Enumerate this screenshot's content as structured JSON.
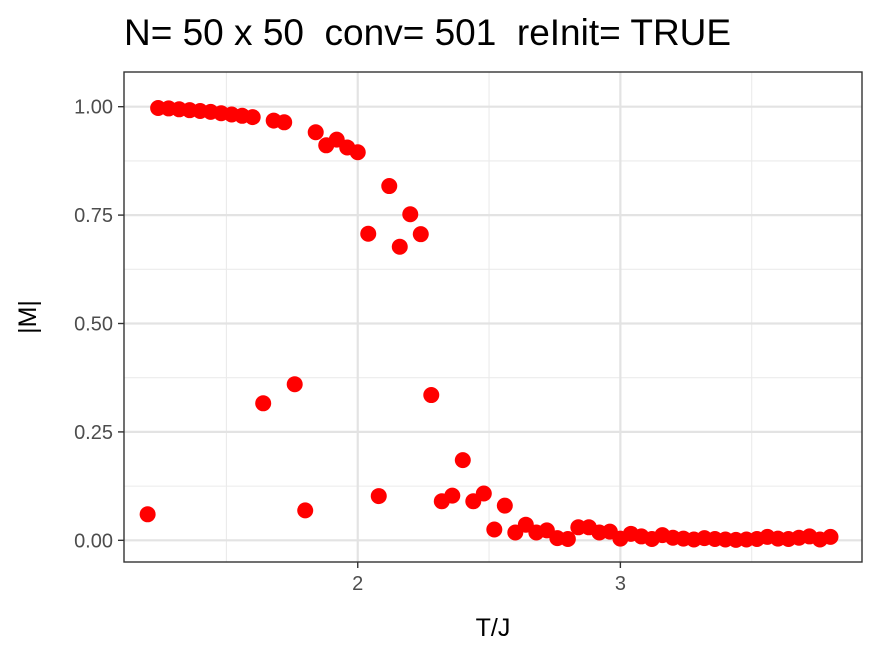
{
  "chart_data": {
    "type": "scatter",
    "title": "N= 50 x 50  conv= 501  reInit= TRUE",
    "xlabel": "T/J",
    "ylabel": "|M|",
    "xlim": [
      1.11,
      3.92
    ],
    "ylim": [
      -0.05,
      1.08
    ],
    "x_ticks": [
      2,
      3
    ],
    "x_tick_labels": [
      "2",
      "3"
    ],
    "y_ticks": [
      0,
      0.25,
      0.5,
      0.75,
      1.0
    ],
    "y_tick_labels": [
      "0.00",
      "0.25",
      "0.50",
      "0.75",
      "1.00"
    ],
    "grid": true,
    "point_color": "#ff0000",
    "series": [
      {
        "x": [
          1.2,
          1.24,
          1.28,
          1.32,
          1.36,
          1.4,
          1.44,
          1.48,
          1.52,
          1.56,
          1.6,
          1.64,
          1.68,
          1.72,
          1.76,
          1.8,
          1.84,
          1.88,
          1.92,
          1.96,
          2.0,
          2.04,
          2.08,
          2.12,
          2.16,
          2.2,
          2.24,
          2.28,
          2.32,
          2.36,
          2.4,
          2.44,
          2.48,
          2.52,
          2.56,
          2.6,
          2.64,
          2.68,
          2.72,
          2.76,
          2.8,
          2.84,
          2.88,
          2.92,
          2.96,
          3.0,
          3.04,
          3.08,
          3.12,
          3.16,
          3.2,
          3.24,
          3.28,
          3.32,
          3.36,
          3.4,
          3.44,
          3.48,
          3.52,
          3.56,
          3.6,
          3.64,
          3.68,
          3.72,
          3.76,
          3.8
        ],
        "y": [
          0.06,
          0.997,
          0.996,
          0.994,
          0.992,
          0.99,
          0.988,
          0.985,
          0.982,
          0.979,
          0.976,
          0.316,
          0.968,
          0.964,
          0.36,
          0.069,
          0.941,
          0.911,
          0.924,
          0.906,
          0.895,
          0.707,
          0.102,
          0.817,
          0.677,
          0.752,
          0.706,
          0.335,
          0.09,
          0.103,
          0.185,
          0.09,
          0.108,
          0.025,
          0.08,
          0.018,
          0.036,
          0.018,
          0.023,
          0.005,
          0.003,
          0.03,
          0.03,
          0.018,
          0.02,
          0.004,
          0.015,
          0.009,
          0.003,
          0.012,
          0.006,
          0.004,
          0.002,
          0.005,
          0.003,
          0.002,
          0.001,
          0.002,
          0.003,
          0.008,
          0.004,
          0.003,
          0.006,
          0.009,
          0.002,
          0.008
        ]
      }
    ]
  }
}
